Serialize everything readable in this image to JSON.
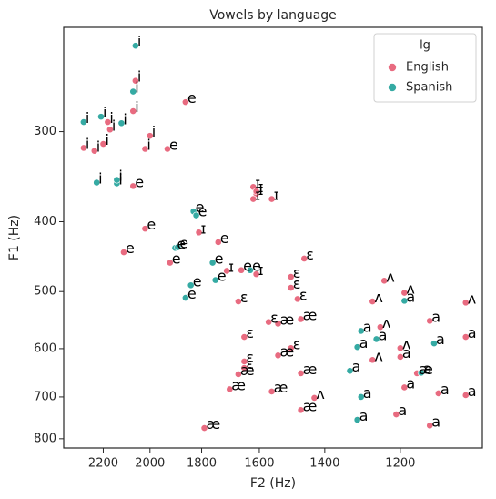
{
  "chart_data": {
    "type": "scatter",
    "title": "Vowels by language",
    "xlabel": "F2 (Hz)",
    "ylabel": "F1 (Hz)",
    "xscale": "log",
    "yscale": "log",
    "xlim": [
      2385,
      1015
    ],
    "ylim": [
      824,
      215
    ],
    "xticks": [
      2200,
      2000,
      1800,
      1600,
      1400,
      1200
    ],
    "yticks": [
      300,
      400,
      500,
      600,
      700,
      800
    ],
    "legend_title": "lg",
    "legend": "upper right",
    "series": [
      {
        "name": "English",
        "color": "#e86b80",
        "x": [
          2060,
          2070,
          1860,
          2290,
          2240,
          2200,
          2170,
          2180,
          2020,
          2000,
          1930,
          2070,
          1620,
          1610,
          1610,
          1620,
          1560,
          2020,
          2110,
          1810,
          1740,
          1920,
          1710,
          1660,
          1610,
          1460,
          1500,
          1500,
          1480,
          1670,
          1240,
          1190,
          1270,
          1050,
          1470,
          1570,
          1540,
          1650,
          1250,
          1130,
          1050,
          1200,
          1200,
          1270,
          1540,
          1500,
          1470,
          1650,
          1650,
          1670,
          1700,
          1560,
          1430,
          1470,
          1190,
          1160,
          1110,
          1050,
          1210,
          1130,
          1790
        ],
        "values": [
          255,
          281,
          273,
          316,
          319,
          312,
          298,
          291,
          317,
          304,
          317,
          357,
          358,
          366,
          363,
          372,
          372,
          409,
          441,
          414,
          427,
          456,
          468,
          467,
          473,
          450,
          477,
          494,
          512,
          516,
          483,
          502,
          516,
          518,
          546,
          551,
          554,
          578,
          560,
          549,
          578,
          599,
          616,
          622,
          613,
          599,
          649,
          625,
          638,
          651,
          683,
          688,
          702,
          730,
          679,
          649,
          692,
          696,
          740,
          767,
          773
        ],
        "labels": [
          "i",
          "i",
          "e",
          "i",
          "i",
          "i",
          "i",
          "i",
          "i",
          "i",
          "e",
          "e",
          "ɪ",
          "ɪ",
          "ɪ",
          "ɪ",
          "ɪ",
          "e",
          "e",
          "ɪ",
          "e",
          "e",
          "ɪ",
          "e",
          "ɪ",
          "ɛ",
          "ɛ",
          "ɛ",
          "ɛ",
          "ɛ",
          "ʌ",
          "ʌ",
          "ʌ",
          "ʌ",
          "æ",
          "ɛ",
          "æ",
          "ɛ",
          "ʌ",
          "a",
          "a",
          "ʌ",
          "a",
          "ʌ",
          "æ",
          "ɛ",
          "æ",
          "ɛ",
          "ɛ",
          "æ",
          "æ",
          "æ",
          "ʌ",
          "æ",
          "a",
          "æ",
          "a",
          "a",
          "a",
          "a",
          "æ"
        ]
      },
      {
        "name": "Spanish",
        "color": "#35aaa3",
        "x": [
          2060,
          2070,
          2290,
          2210,
          2120,
          2230,
          2140,
          2140,
          1830,
          1820,
          1900,
          1890,
          1840,
          1860,
          1760,
          1750,
          1630,
          1300,
          1310,
          1330,
          1260,
          1190,
          1120,
          1150,
          1310,
          1300
        ],
        "values": [
          228,
          264,
          291,
          286,
          292,
          353,
          354,
          350,
          387,
          392,
          435,
          434,
          490,
          510,
          456,
          482,
          467,
          567,
          597,
          644,
          582,
          515,
          590,
          648,
          753,
          700
        ],
        "labels": [
          "i",
          "i",
          "i",
          "i",
          "i",
          "i",
          "i",
          "i",
          "e",
          "e",
          "e",
          "e",
          "e",
          "e",
          "e",
          "e",
          "e",
          "a",
          "a",
          "a",
          "a",
          "a",
          "a",
          "a",
          "a",
          "a"
        ]
      }
    ]
  }
}
